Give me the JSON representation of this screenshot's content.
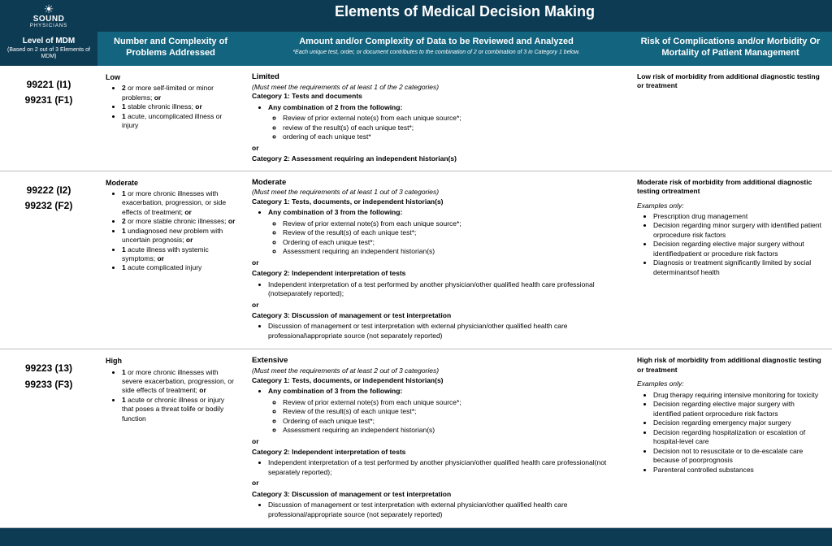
{
  "colors": {
    "dark": "#0d3b53",
    "mid": "#13647f",
    "border": "#bbbbbb"
  },
  "logo": {
    "brand": "SOUND",
    "sub": "PHYSICIANS"
  },
  "title": "Elements of Medical Decision Making",
  "headers": {
    "level": "Level of MDM",
    "level_sub": "(Based on 2 out of 3 Elements of MDM)",
    "number": "Number and Complexity of Problems Addressed",
    "data": "Amount and/or Complexity of Data to be Reviewed and Analyzed",
    "data_sub": "*Each unique test, order, or document contributes to the combination of 2 or combination of 3 in Category 1 below.",
    "risk": "Risk of Complications and/or Morbidity Or Mortality of Patient Management"
  },
  "rows": [
    {
      "codes": [
        "99221 (I1)",
        "99231 (F1)"
      ],
      "number": {
        "level": "Low",
        "items": [
          "<b>2</b> or more self-limited or minor problems; <b>or</b>",
          "<b>1</b> stable chronic illness; <b>or</b>",
          "<b>1</b> acute, uncomplicated illness or injury"
        ]
      },
      "data": {
        "title": "Limited",
        "req": "(Must meet the requirements of at least 1 of the 2 categories)",
        "cat1_title": "Category 1: Tests and documents",
        "cat1_lead": "Any combination of 2 from the following:",
        "cat1_items": [
          "Review of prior external note(s) from each unique source*;",
          "review of the result(s) of each unique test*;",
          "ordering of each unique test*"
        ],
        "or": "or",
        "cat2_title": "Category 2: Assessment requiring an independent historian(s)"
      },
      "risk": {
        "title": "Low risk of morbidity from additional diagnostic testing or treatment"
      }
    },
    {
      "codes": [
        "99222 (I2)",
        "99232 (F2)"
      ],
      "number": {
        "level": "Moderate",
        "items": [
          "<b>1</b> or more chronic illnesses with exacerbation, progression, or side effects of treatment; <b>or</b>",
          "<b>2</b> or more stable chronic illnesses; <b>or</b>",
          "<b>1</b> undiagnosed new problem with uncertain prognosis; <b>or</b>",
          "<b>1</b> acute illness with systemic symptoms; <b>or</b>",
          "<b>1</b> acute complicated injury"
        ]
      },
      "data": {
        "title": "Moderate",
        "req": "(Must meet the requirements of at least 1 out of 3 categories)",
        "cat1_title": "Category 1: Tests, documents, or independent historian(s)",
        "cat1_lead": "Any combination of 3 from the following:",
        "cat1_items": [
          "Review of prior external note(s) from each unique source*;",
          "Review of the result(s) of each unique test*;",
          "Ordering of each unique test*;",
          "Assessment requiring an independent historian(s)"
        ],
        "or": "or",
        "cat2_title": "Category 2: Independent interpretation of tests",
        "cat2_items": [
          "Independent interpretation of a test performed by another physician/other qualified health care professional (notseparately reported);"
        ],
        "cat3_title": "Category 3: Discussion of management or test interpretation",
        "cat3_items": [
          "Discussion of management or test interpretation with external physician/other qualified health care professional\\appropriate source (not separately reported)"
        ]
      },
      "risk": {
        "title": "Moderate risk of morbidity from additional diagnostic testing ortreatment",
        "ex_label": "Examples only:",
        "examples": [
          "Prescription drug management",
          "Decision regarding minor surgery with identified patient orprocedure risk factors",
          "Decision regarding elective major surgery without identifiedpatient or procedure risk factors",
          "Diagnosis or treatment significantly limited by social determinantsof health"
        ]
      }
    },
    {
      "codes": [
        "99223 (13)",
        "99233 (F3)"
      ],
      "number": {
        "level": "High",
        "items": [
          "<b>1</b> or more chronic illnesses with severe exacerbation, progression, or side effects of treatment; <b>or</b>",
          "<b>1</b> acute or chronic illness or injury that poses a threat tolife or bodily function"
        ]
      },
      "data": {
        "title": "Extensive",
        "req": "(Must meet the requirements of at least 2 out of 3 categories)",
        "cat1_title": "Category 1: Tests, documents, or independent historian(s)",
        "cat1_lead": "Any combination of 3 from the following:",
        "cat1_items": [
          "Review of prior external note(s) from each unique source*;",
          "Review of the result(s) of each unique test*;",
          "Ordering of each unique test*;",
          "Assessment requiring an independent historian(s)"
        ],
        "or": "or",
        "cat2_title": "Category 2: Independent interpretation of tests",
        "cat2_items": [
          "Independent interpretation of a test performed by another physician/other qualified health care professional(not separately reported);"
        ],
        "cat3_title": "Category 3: Discussion of management or test interpretation",
        "cat3_items": [
          "Discussion of management or test interpretation with external physician/other qualified health care professional/appropriate source (not separately reported)"
        ]
      },
      "risk": {
        "title": "High risk of morbidity from additional diagnostic testing or treatment",
        "ex_label": "Examples only:",
        "examples": [
          "Drug therapy requiring intensive monitoring for toxicity",
          "Decision regarding elective major surgery with identified patient orprocedure risk factors",
          "Decision regarding emergency major surgery",
          "Decision regarding hospitalization or escalation of hospital-level care",
          "Decision not to resuscitate or to de-escalate care because of poorprognosis",
          "Parenteral controlled substances"
        ]
      }
    }
  ]
}
